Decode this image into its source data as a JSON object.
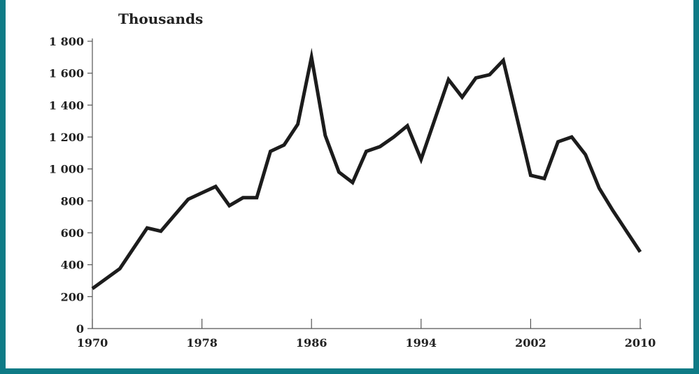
{
  "colors": {
    "frame": "#0e7b86",
    "line": "#1c1c1c",
    "axis": "#555555",
    "text": "#222222"
  },
  "chart_data": {
    "type": "line",
    "title": "",
    "ylabel": "Thousands",
    "xlabel": "",
    "xlim": [
      1970,
      2010
    ],
    "ylim": [
      0,
      1800
    ],
    "x_ticks": [
      1970,
      1978,
      1986,
      1994,
      2002,
      2010
    ],
    "x_tick_labels": [
      "1970",
      "1978",
      "1986",
      "1994",
      "2002",
      "2010"
    ],
    "y_ticks": [
      0,
      200,
      400,
      600,
      800,
      1000,
      1200,
      1400,
      1600,
      1800
    ],
    "y_tick_labels": [
      "0",
      "200",
      "400",
      "600",
      "800",
      "1 000",
      "1 200",
      "1 400",
      "1 600",
      "1 800"
    ],
    "grid": false,
    "legend": "none",
    "series": [
      {
        "x": [
          1970,
          1972,
          1974,
          1975,
          1976,
          1977,
          1978,
          1979,
          1980,
          1981,
          1982,
          1983,
          1984,
          1985,
          1986,
          1987,
          1988,
          1989,
          1990,
          1991,
          1992,
          1993,
          1994,
          1995,
          1996,
          1997,
          1998,
          1999,
          2000,
          2001,
          2002,
          2003,
          2004,
          2005,
          2006,
          2007,
          2008,
          2009,
          2010
        ],
        "values": [
          250,
          375,
          630,
          610,
          710,
          810,
          850,
          890,
          770,
          820,
          820,
          1110,
          1150,
          1280,
          1700,
          1210,
          980,
          915,
          1110,
          1140,
          1200,
          1270,
          1060,
          1310,
          1560,
          1450,
          1570,
          1590,
          1680,
          1320,
          960,
          940,
          1170,
          1200,
          1090,
          880,
          740,
          610,
          480
        ]
      }
    ]
  }
}
